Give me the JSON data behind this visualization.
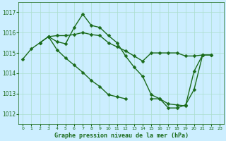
{
  "bg_color": "#cceeff",
  "grid_color": "#aaddcc",
  "line_color": "#1a6b1a",
  "line_width": 1.0,
  "marker": "D",
  "marker_size": 2.5,
  "title": "Graphe pression niveau de la mer (hPa)",
  "xlabel_hours": [
    0,
    1,
    2,
    3,
    4,
    5,
    6,
    7,
    8,
    9,
    10,
    11,
    12,
    13,
    14,
    15,
    16,
    17,
    18,
    19,
    20,
    21,
    22,
    23
  ],
  "ylim": [
    1011.5,
    1017.5
  ],
  "yticks": [
    1012,
    1013,
    1014,
    1015,
    1016,
    1017
  ],
  "series": [
    {
      "x": [
        0,
        1,
        2,
        3,
        4,
        5,
        6,
        7,
        8,
        9,
        10,
        11,
        12,
        13,
        14,
        15,
        16,
        17,
        18,
        19,
        20,
        21
      ],
      "y": [
        1014.7,
        1015.2,
        1015.5,
        1015.8,
        1015.85,
        1015.85,
        1015.9,
        1016.0,
        1015.9,
        1015.85,
        1015.5,
        1015.3,
        1015.1,
        1014.85,
        1014.6,
        1015.0,
        1015.0,
        1015.0,
        1015.0,
        1014.85,
        1014.85,
        1014.9
      ]
    },
    {
      "x": [
        2,
        3,
        4,
        5,
        6,
        7,
        8,
        9,
        10,
        11,
        12,
        13,
        14,
        15,
        16,
        17,
        18,
        19,
        20,
        21,
        22
      ],
      "y": [
        1015.5,
        1015.8,
        1015.55,
        1015.45,
        1016.25,
        1016.9,
        1016.35,
        1016.25,
        1015.85,
        1015.5,
        1014.85,
        1014.3,
        1013.85,
        1012.95,
        1012.75,
        1012.5,
        1012.45,
        1012.4,
        1014.1,
        1014.9,
        1014.9
      ]
    },
    {
      "x": [
        3,
        4,
        5,
        6,
        7,
        8,
        9,
        10,
        11,
        12
      ],
      "y": [
        1015.8,
        1015.15,
        1014.75,
        1014.4,
        1014.05,
        1013.65,
        1013.35,
        1012.95,
        1012.85,
        1012.75
      ]
    },
    {
      "x": [
        15,
        16,
        17,
        18,
        19,
        20,
        21,
        22
      ],
      "y": [
        1012.75,
        1012.75,
        1012.3,
        1012.3,
        1012.45,
        1013.2,
        1014.9,
        1014.9
      ]
    }
  ]
}
